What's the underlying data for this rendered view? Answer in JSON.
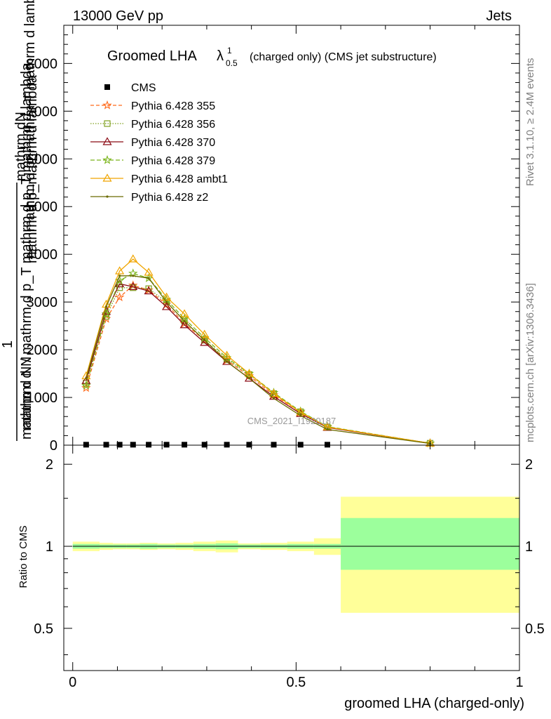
{
  "header": {
    "left": "13000 GeV pp",
    "right": "Jets"
  },
  "side_labels": {
    "rivet": "Rivet 3.1.10, ≥ 2.4M events",
    "mcplots": "mcplots.cern.ch [arXiv:1306.3436]"
  },
  "watermark": "CMS_2021_I1920187",
  "chart_data": [
    {
      "type": "line",
      "title": "Groomed LHA",
      "title_symbol": "λ",
      "title_sup": "1",
      "title_sub": "0.5",
      "title_suffix": "(charged only) (CMS jet substructure)",
      "ylabel_numerator": "mathrm dN",
      "ylabel_denominator": "mathrm d p_mathrm d lambda",
      "ylabel_prefix": "1",
      "ylabel_prefix_den": "mathrm d N",
      "ylabel_overlay_1": "mathrm d p_mathrm T mathrm d lambda",
      "ylabel_overlay_2": "mathrm d N / mathrm d p_T mathrm d p_T mathrm d lambda",
      "ylim": [
        0,
        8800
      ],
      "yticks": [
        0,
        1000,
        2000,
        3000,
        4000,
        5000,
        6000,
        7000,
        8000
      ],
      "ytick_labels": [
        "0",
        "1000",
        "2000",
        "3000",
        "4000",
        "5000",
        "6000",
        "7000",
        "8000"
      ],
      "xlim": [
        -0.02,
        1.0
      ],
      "legend_position": "top-left",
      "x": [
        0.03,
        0.075,
        0.105,
        0.135,
        0.17,
        0.21,
        0.25,
        0.295,
        0.345,
        0.395,
        0.45,
        0.51,
        0.57,
        0.8
      ],
      "series": [
        {
          "name": "CMS",
          "color": "#000000",
          "marker": "square",
          "dash": "",
          "values": [
            10,
            10,
            10,
            10,
            10,
            10,
            10,
            10,
            10,
            10,
            10,
            10,
            10,
            null
          ]
        },
        {
          "name": "Pythia 6.428 355",
          "color": "#ff6a1a",
          "marker": "star",
          "dash": "5,3",
          "values": [
            1200,
            2650,
            3100,
            3350,
            3250,
            2950,
            2550,
            2200,
            1780,
            1450,
            1050,
            690,
            380,
            40
          ]
        },
        {
          "name": "Pythia 6.428 356",
          "color": "#7fa01e",
          "marker": "open-square",
          "dash": "1.5,2",
          "values": [
            1300,
            2700,
            3300,
            3300,
            3280,
            3000,
            2600,
            2200,
            1800,
            1480,
            1080,
            700,
            380,
            40
          ]
        },
        {
          "name": "Pythia 6.428 370",
          "color": "#8b0a14",
          "marker": "open-triangle",
          "dash": "",
          "values": [
            1350,
            2800,
            3380,
            3320,
            3230,
            2900,
            2520,
            2150,
            1750,
            1400,
            1020,
            660,
            370,
            40
          ]
        },
        {
          "name": "Pythia 6.428 379",
          "color": "#7bb51c",
          "marker": "star",
          "dash": "6,3",
          "values": [
            1250,
            2750,
            3450,
            3600,
            3500,
            3050,
            2650,
            2250,
            1830,
            1500,
            1100,
            710,
            390,
            40
          ]
        },
        {
          "name": "Pythia 6.428 ambt1",
          "color": "#f0a500",
          "marker": "open-triangle",
          "dash": "",
          "values": [
            1450,
            2950,
            3650,
            3900,
            3620,
            3100,
            2750,
            2320,
            1880,
            1500,
            1080,
            690,
            380,
            40
          ]
        },
        {
          "name": "Pythia 6.428 z2",
          "color": "#6b6b00",
          "marker": "dot",
          "dash": "",
          "values": [
            1400,
            2900,
            3550,
            3550,
            3500,
            3000,
            2600,
            2200,
            1750,
            1400,
            980,
            620,
            330,
            35
          ]
        }
      ]
    },
    {
      "type": "area",
      "ylabel": "Ratio to CMS",
      "xlabel": "groomed LHA (charged-only)",
      "ylim": [
        0.35,
        2.35
      ],
      "log_scale": true,
      "yticks": [
        0.5,
        1,
        2
      ],
      "ytick_labels": [
        "0.5",
        "1",
        "2"
      ],
      "xlim": [
        -0.02,
        1.0
      ],
      "xticks": [
        0,
        0.5,
        1
      ],
      "xtick_labels": [
        "0",
        "0.5",
        "1"
      ],
      "bin_edges": [
        0.0,
        0.06,
        0.09,
        0.12,
        0.15,
        0.19,
        0.23,
        0.27,
        0.32,
        0.37,
        0.42,
        0.48,
        0.54,
        0.6,
        1.0
      ],
      "stat_band_lo": [
        0.98,
        0.985,
        0.985,
        0.985,
        0.98,
        0.985,
        0.985,
        0.98,
        0.975,
        0.985,
        0.985,
        0.98,
        0.98,
        0.82
      ],
      "stat_band_hi": [
        1.02,
        1.015,
        1.015,
        1.015,
        1.02,
        1.015,
        1.015,
        1.02,
        1.025,
        1.015,
        1.015,
        1.02,
        1.02,
        1.27
      ],
      "total_band_lo": [
        0.96,
        0.97,
        0.975,
        0.975,
        0.97,
        0.975,
        0.97,
        0.96,
        0.95,
        0.975,
        0.97,
        0.96,
        0.93,
        0.57
      ],
      "total_band_hi": [
        1.04,
        1.03,
        1.025,
        1.025,
        1.03,
        1.025,
        1.03,
        1.04,
        1.05,
        1.025,
        1.03,
        1.04,
        1.07,
        1.52
      ],
      "stat_color": "#9cff9c",
      "total_color": "#ffff99",
      "reference_line": 1
    }
  ]
}
